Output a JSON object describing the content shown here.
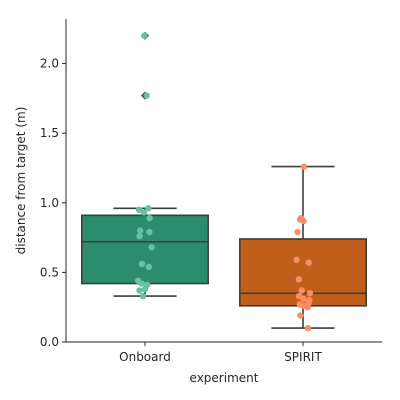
{
  "chart_data": {
    "type": "box",
    "xlabel": "experiment",
    "ylabel": "distance from target (m)",
    "categories": [
      "Onboard",
      "SPIRIT"
    ],
    "ylim": [
      0.0,
      2.32
    ],
    "yticks": [
      "0.0",
      "0.5",
      "1.0",
      "1.5",
      "2.0"
    ],
    "ytick_values": [
      0.0,
      0.5,
      1.0,
      1.5,
      2.0
    ],
    "grid": false,
    "boxes": [
      {
        "category": "Onboard",
        "color": "#2b8c6e",
        "point_color": "#66c2a5",
        "whisker_low": 0.33,
        "q1": 0.42,
        "median": 0.72,
        "q3": 0.91,
        "whisker_high": 0.96,
        "outliers": [
          1.77,
          2.2
        ],
        "points": [
          0.96,
          0.95,
          0.93,
          0.89,
          0.8,
          0.79,
          0.76,
          0.68,
          0.56,
          0.54,
          0.44,
          0.42,
          0.41,
          0.38,
          0.37,
          0.33,
          1.77,
          2.2
        ]
      },
      {
        "category": "SPIRIT",
        "color": "#c05f1b",
        "point_color": "#fc8d62",
        "whisker_low": 0.1,
        "q1": 0.26,
        "median": 0.35,
        "q3": 0.74,
        "whisker_high": 1.26,
        "outliers": [],
        "points": [
          1.26,
          0.89,
          0.88,
          0.87,
          0.79,
          0.59,
          0.57,
          0.45,
          0.37,
          0.35,
          0.33,
          0.31,
          0.3,
          0.28,
          0.27,
          0.26,
          0.25,
          0.19,
          0.1
        ]
      }
    ]
  }
}
